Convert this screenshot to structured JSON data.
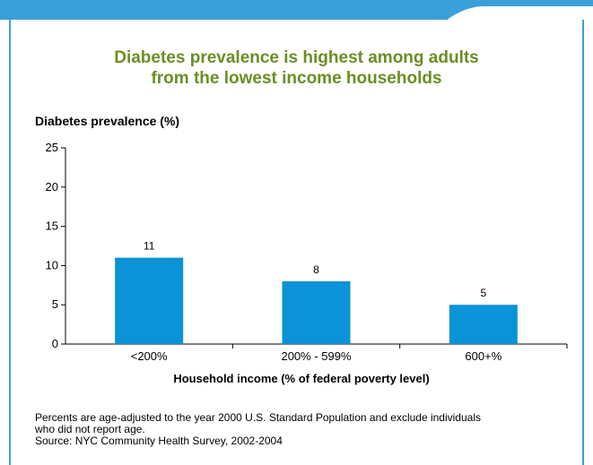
{
  "title_lines": [
    "Diabetes prevalence is highest among adults",
    "from the lowest income households"
  ],
  "footnote_lines": [
    "Percents are age-adjusted to the year 2000 U.S. Standard Population and exclude individuals",
    "who did not report age.",
    "Source: NYC Community Health Survey, 2002-2004"
  ],
  "colors": {
    "bar": "#0a93d6",
    "title": "#6b8e23",
    "frame": "#3aa0d8"
  },
  "chart_data": {
    "type": "bar",
    "categories": [
      "<200%",
      "200% - 599%",
      "600+%"
    ],
    "values": [
      11,
      8,
      5
    ],
    "ylabel": "Diabetes prevalence (%)",
    "xlabel": "Household income (% of federal poverty level)",
    "ylim": [
      0,
      25
    ],
    "yticks": [
      0,
      5,
      10,
      15,
      20,
      25
    ],
    "data_labels": [
      "11",
      "8",
      "5"
    ],
    "grid": false,
    "legend": "none"
  }
}
